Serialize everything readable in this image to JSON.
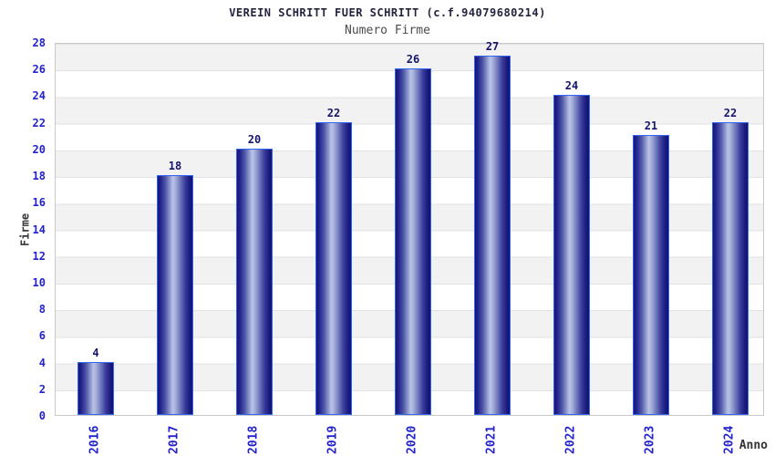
{
  "header": {
    "title": "VEREIN SCHRITT FUER SCHRITT (c.f.94079680214)",
    "subtitle": "Numero Firme"
  },
  "chart_data": {
    "type": "bar",
    "title": "VEREIN SCHRITT FUER SCHRITT (c.f.94079680214)",
    "subtitle": "Numero Firme",
    "categories": [
      "2016",
      "2017",
      "2018",
      "2019",
      "2020",
      "2021",
      "2022",
      "2023",
      "2024"
    ],
    "values": [
      4,
      18,
      20,
      22,
      26,
      27,
      24,
      21,
      22
    ],
    "xlabel": "Anno",
    "ylabel": "Firme",
    "ylim": [
      0,
      28
    ],
    "ytick_step": 2,
    "yticks": [
      0,
      2,
      4,
      6,
      8,
      10,
      12,
      14,
      16,
      18,
      20,
      22,
      24,
      26,
      28
    ],
    "grid": "horizontal",
    "legend": "none",
    "bar_value_labels_shown": true,
    "colors": {
      "bar_edge_dark": "#15157d",
      "bar_center_light": "#b9c2e6",
      "bar_border": "#3366ee",
      "tick_label_blue": "#2222cc",
      "value_label_navy": "#15156e",
      "band_gray": "#f2f2f2",
      "band_white": "#ffffff",
      "grid_line": "#e2e2e2",
      "plot_border": "#c9c9c9",
      "title_color": "#24243e",
      "subtitle_color": "#4c4c4c",
      "axis_title_color": "#333333"
    }
  }
}
